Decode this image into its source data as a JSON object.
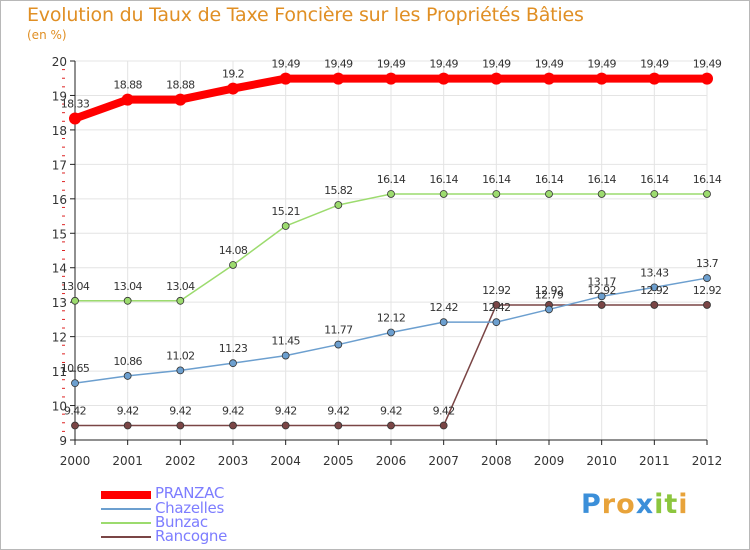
{
  "title": "Evolution du Taux de Taxe Foncière sur les Propriétés Bâties",
  "unit": "(en %)",
  "chart_data": {
    "type": "line",
    "title": "Evolution du Taux de Taxe Foncière sur les Propriétés Bâties",
    "ylabel": "(en %)",
    "xlabel": "",
    "ylim": [
      9,
      20
    ],
    "yticks": [
      9,
      10,
      11,
      12,
      13,
      14,
      15,
      16,
      17,
      18,
      19,
      20
    ],
    "categories": [
      "2000",
      "2001",
      "2002",
      "2003",
      "2004",
      "2005",
      "2006",
      "2007",
      "2008",
      "2009",
      "2010",
      "2011",
      "2012"
    ],
    "series": [
      {
        "name": "PRANZAC",
        "color": "#ff0000",
        "values": [
          18.33,
          18.88,
          18.88,
          19.2,
          19.49,
          19.49,
          19.49,
          19.49,
          19.49,
          19.49,
          19.49,
          19.49,
          19.49
        ],
        "labels": [
          "18.33",
          "18.88",
          "18.88",
          "19.2",
          "19.49",
          "19.49",
          "19.49",
          "19.49",
          "19.49",
          "19.49",
          "19.49",
          "19.49",
          "19.49"
        ]
      },
      {
        "name": "Chazelles",
        "color": "#6c9fcf",
        "values": [
          10.65,
          10.86,
          11.02,
          11.23,
          11.45,
          11.77,
          12.12,
          12.42,
          12.42,
          12.79,
          13.17,
          13.43,
          13.7
        ],
        "labels": [
          "10.65",
          "10.86",
          "11.02",
          "11.23",
          "11.45",
          "11.77",
          "12.12",
          "12.42",
          "12.42",
          "12.79",
          "13.17",
          "13.43",
          "13.7"
        ]
      },
      {
        "name": "Bunzac",
        "color": "#9cdb6e",
        "values": [
          13.04,
          13.04,
          13.04,
          14.08,
          15.21,
          15.82,
          16.14,
          16.14,
          16.14,
          16.14,
          16.14,
          16.14,
          16.14
        ],
        "labels": [
          "13.04",
          "13.04",
          "13.04",
          "14.08",
          "15.21",
          "15.82",
          "16.14",
          "16.14",
          "16.14",
          "16.14",
          "16.14",
          "16.14",
          "16.14"
        ]
      },
      {
        "name": "Rancogne",
        "color": "#7a4545",
        "values": [
          9.42,
          9.42,
          9.42,
          9.42,
          9.42,
          9.42,
          9.42,
          9.42,
          12.92,
          12.92,
          12.92,
          12.92,
          12.92
        ],
        "labels": [
          "9.42",
          "9.42",
          "9.42",
          "9.42",
          "9.42",
          "9.42",
          "9.42",
          "9.42",
          "12.92",
          "12.92",
          "12.92",
          "12.92",
          "12.92"
        ]
      }
    ]
  },
  "legend": [
    {
      "label": "PRANZAC",
      "color": "#ff0000"
    },
    {
      "label": "Chazelles",
      "color": "#6c9fcf"
    },
    {
      "label": "Bunzac",
      "color": "#9cdb6e"
    },
    {
      "label": "Rancogne",
      "color": "#7a4545"
    }
  ],
  "logo": {
    "text": "Proxiti",
    "letters": [
      "P",
      "r",
      "o",
      "x",
      "i",
      "t",
      "i"
    ],
    "colors": [
      "#3b8fd9",
      "#e8a33a",
      "#e8a33a",
      "#3b8fd9",
      "#8cc63e",
      "#8cc63e",
      "#e8a33a"
    ]
  }
}
